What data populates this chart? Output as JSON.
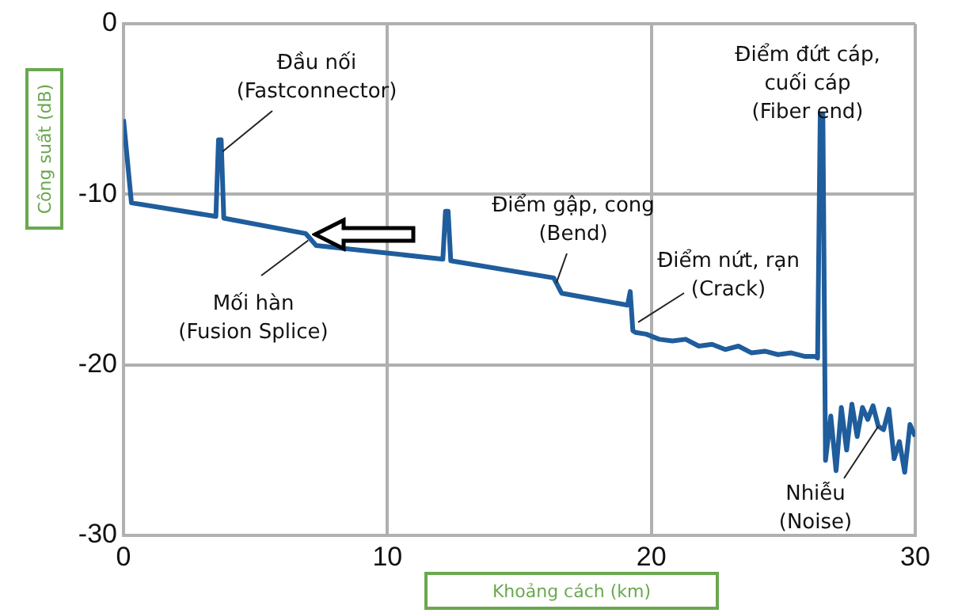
{
  "chart_data": {
    "type": "line",
    "xlabel": "Khoảng cách (km)",
    "ylabel": "Công suất (dB)",
    "xlim": [
      0,
      30
    ],
    "xticks": [
      0,
      10,
      20,
      30
    ],
    "ylim": [
      -30,
      0
    ],
    "yticks": [
      -30,
      -20,
      -10,
      0
    ],
    "grid": true,
    "legend": false,
    "marker": "none",
    "line_style": "solid",
    "series": [
      {
        "color": "#1f5d9c",
        "x": [
          0,
          0.3,
          3.5,
          3.6,
          3.7,
          3.8,
          6.9,
          7.3,
          12.1,
          12.2,
          12.3,
          12.4,
          16.3,
          16.6,
          19.1,
          19.2,
          19.3,
          19.4,
          19.8,
          20.3,
          20.8,
          21.3,
          21.8,
          22.3,
          22.8,
          23.3,
          23.8,
          24.3,
          24.8,
          25.3,
          25.8,
          26.2,
          26.3,
          26.4,
          26.5,
          26.6,
          26.8,
          27.0,
          27.2,
          27.4,
          27.6,
          27.8,
          28.0,
          28.2,
          28.4,
          28.6,
          28.8,
          29.0,
          29.2,
          29.4,
          29.6,
          29.8,
          30
        ],
        "values": [
          -5.6,
          -10.5,
          -11.3,
          -6.8,
          -6.8,
          -11.4,
          -12.3,
          -13.0,
          -13.8,
          -11.0,
          -11.0,
          -13.9,
          -14.9,
          -15.8,
          -16.5,
          -15.7,
          -18.0,
          -18.1,
          -18.2,
          -18.5,
          -18.6,
          -18.5,
          -18.9,
          -18.8,
          -19.1,
          -18.9,
          -19.3,
          -19.2,
          -19.4,
          -19.3,
          -19.5,
          -19.5,
          -19.6,
          -5.3,
          -5.3,
          -25.6,
          -23.0,
          -26.2,
          -22.5,
          -25.0,
          -22.3,
          -24.2,
          -22.5,
          -23.2,
          -22.4,
          -23.6,
          -23.8,
          -22.6,
          -25.5,
          -24.5,
          -26.3,
          -23.5,
          -24.2
        ]
      }
    ],
    "annotations": [
      {
        "text": "Đầu nối\n(Fastconnector)",
        "x": 3.75,
        "y": -7.5
      },
      {
        "text": "Mối hàn\n(Fusion Splice)",
        "x": 7.0,
        "y": -12.7
      },
      {
        "text": "Điểm gập, cong\n(Bend)",
        "x": 16.4,
        "y": -15.2
      },
      {
        "text": "Điểm nứt, rạn\n(Crack)",
        "x": 19.5,
        "y": -17.5
      },
      {
        "text": "Điểm đứt cáp,\ncuối cáp\n(Fiber end)",
        "x": 26.4,
        "y": -5.3
      },
      {
        "text": "Nhiễu\n(Noise)",
        "x": 28.6,
        "y": -23.6
      }
    ]
  }
}
